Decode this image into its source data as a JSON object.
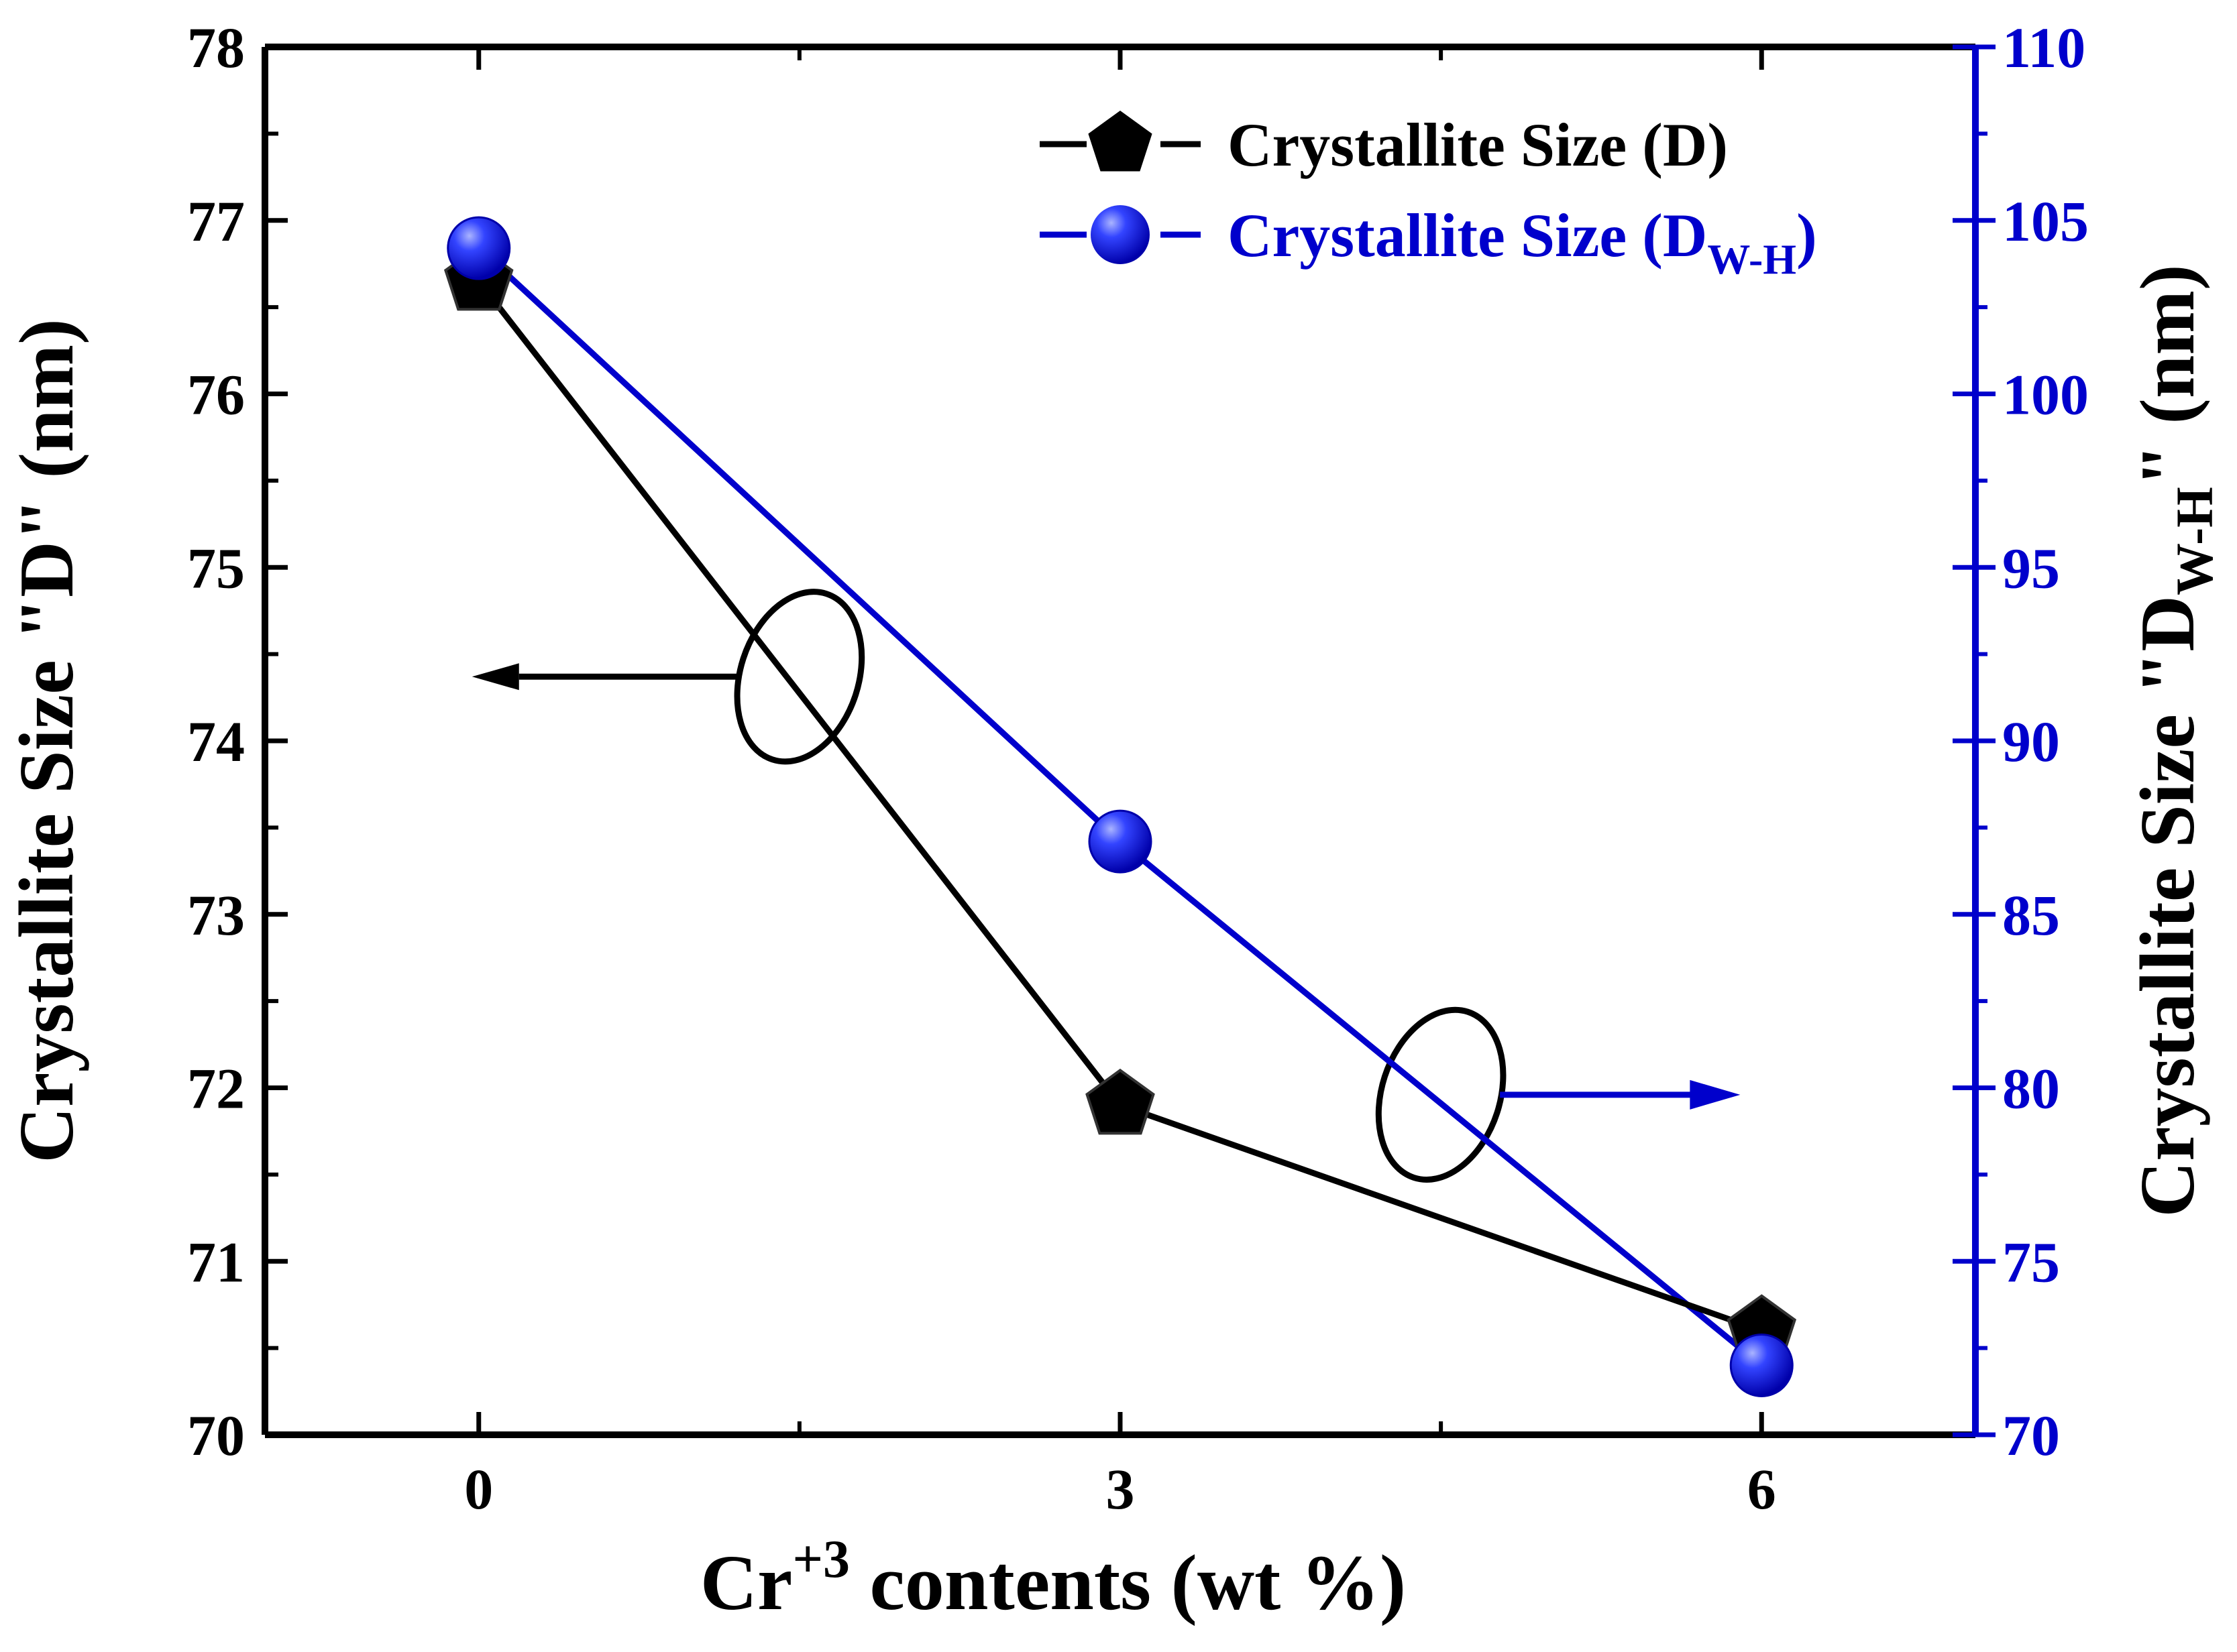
{
  "chart_data": {
    "type": "line",
    "x": [
      0,
      3,
      6
    ],
    "xlim": [
      -1,
      7
    ],
    "x_ticks": [
      "0",
      "3",
      "6"
    ],
    "xlabel": {
      "base": "Cr",
      "sup": "+3",
      "rest": " contents (wt %)"
    },
    "y_left": {
      "label": "Crystallite Size \"D\" (nm)",
      "lim": [
        70,
        78
      ],
      "ticks": [
        "70",
        "71",
        "72",
        "73",
        "74",
        "75",
        "76",
        "77",
        "78"
      ]
    },
    "y_right": {
      "label_base": "Crystallite Size \"D",
      "label_sub": "W-H",
      "label_end": "\" (nm)",
      "lim": [
        70,
        110
      ],
      "ticks": [
        "70",
        "75",
        "80",
        "85",
        "90",
        "95",
        "100",
        "105",
        "110"
      ],
      "color": "#0000cc"
    },
    "series": [
      {
        "name": "Crystallite Size (D)",
        "axis": "left",
        "marker": "pentagon",
        "color": "#000000",
        "values": [
          76.65,
          71.9,
          70.6
        ]
      },
      {
        "name_base": "Crystallite Size (D",
        "name_sub": "W-H",
        "name_end": ")",
        "axis": "right",
        "marker": "sphere",
        "color": "#0000cc",
        "values": [
          104.2,
          87.1,
          72.0
        ]
      }
    ],
    "legend_position": "top-right",
    "annotations": [
      {
        "type": "ellipse-with-arrow",
        "series": "left",
        "arrow_direction": "left"
      },
      {
        "type": "ellipse-with-arrow",
        "series": "right",
        "arrow_direction": "right"
      }
    ],
    "grid": false
  }
}
